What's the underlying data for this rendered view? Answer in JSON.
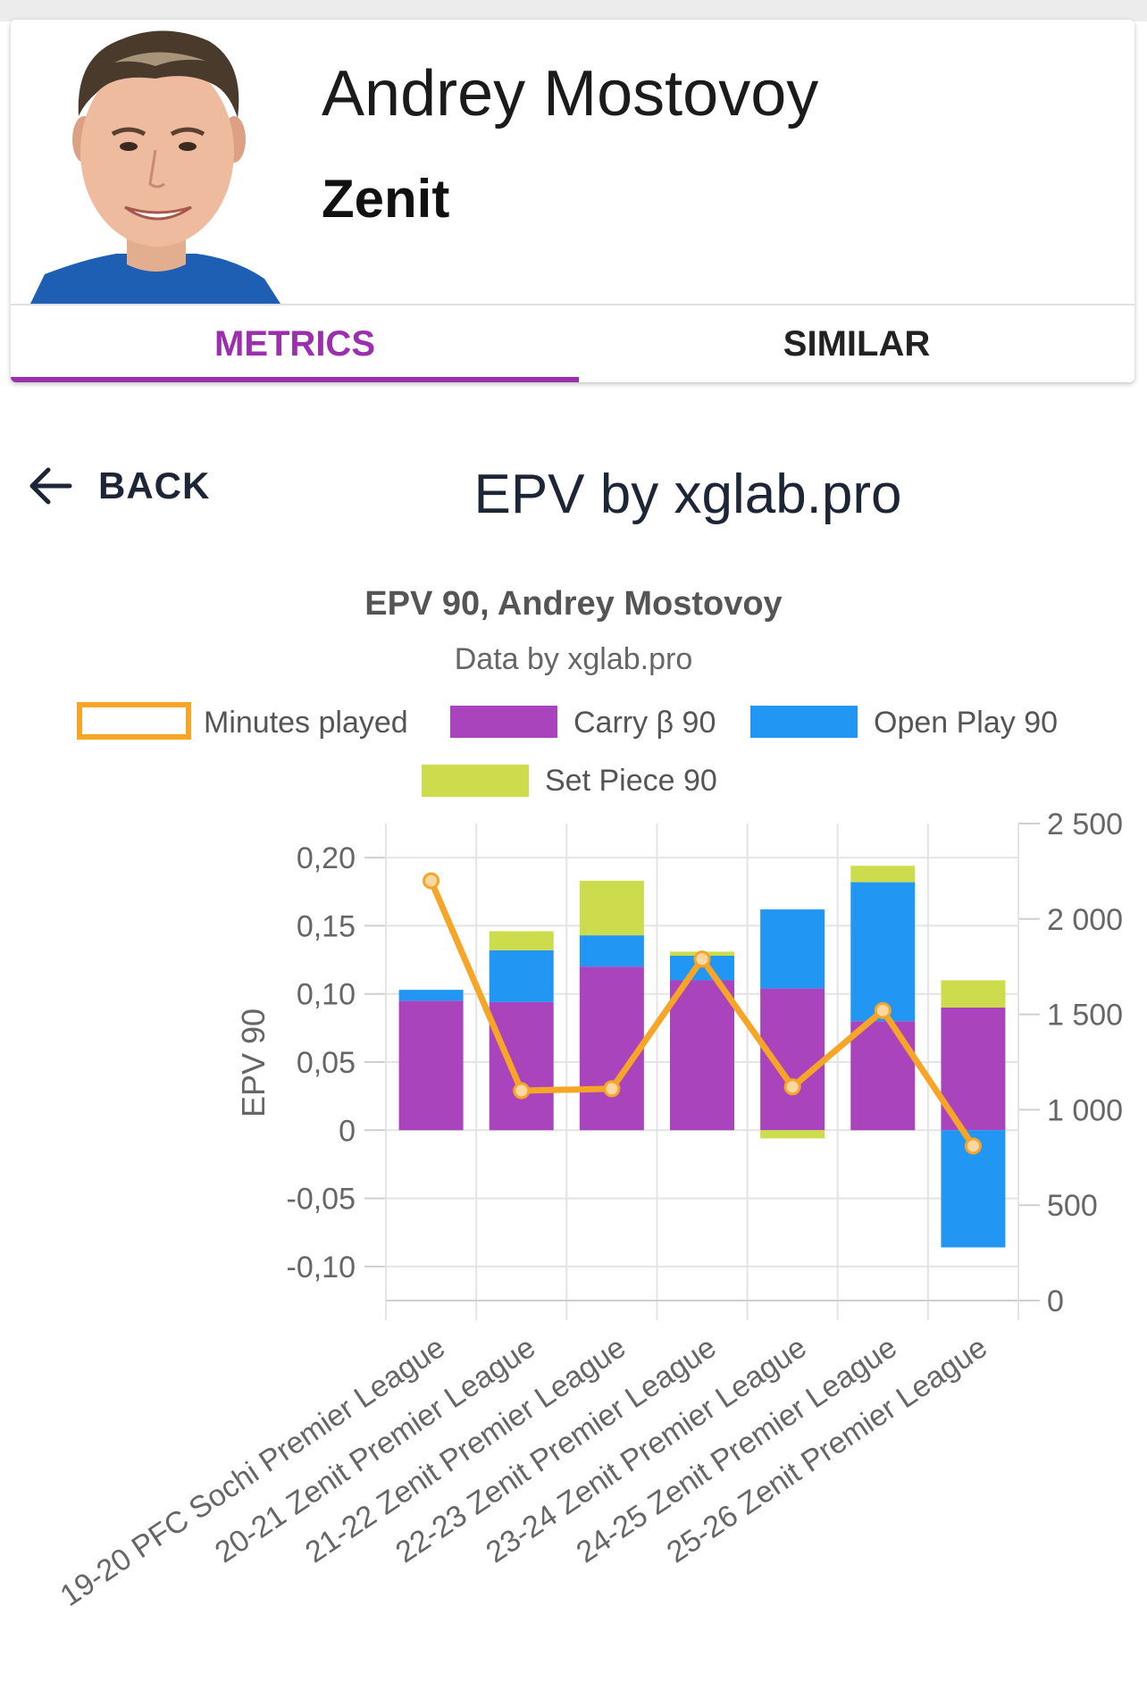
{
  "player": {
    "name": "Andrey Mostovoy",
    "club": "Zenit",
    "photo": "player-photo"
  },
  "tabs": [
    {
      "label": "METRICS",
      "active": true
    },
    {
      "label": "SIMILAR",
      "active": false
    }
  ],
  "nav": {
    "back_label": "BACK",
    "back_icon": "arrow-left-icon"
  },
  "page_title": "EPV by xglab.pro",
  "colors": {
    "accent": "#9b2fae",
    "minutes": "#f7a526",
    "carry": "#a944bd",
    "open_play": "#2196f3",
    "set_piece": "#cddc4c"
  },
  "chart_data": {
    "type": "bar",
    "stacked": true,
    "title": "EPV 90, Andrey Mostovoy",
    "subtitle": "Data by xglab.pro",
    "ylabel": "EPV 90",
    "legend_position": "top",
    "grid": true,
    "categories": [
      "19-20 PFC Sochi Premier League",
      "20-21 Zenit Premier League",
      "21-22 Zenit Premier League",
      "22-23 Zenit Premier League",
      "23-24 Zenit Premier League",
      "24-25 Zenit Premier League",
      "25-26 Zenit Premier League"
    ],
    "series": [
      {
        "name": "Minutes played",
        "type": "line",
        "axis": "right",
        "values": [
          2200,
          1100,
          1110,
          1790,
          1120,
          1520,
          810
        ]
      },
      {
        "name": "Carry β 90",
        "type": "bar",
        "axis": "left",
        "values": [
          0.095,
          0.094,
          0.12,
          0.11,
          0.104,
          0.08,
          0.09
        ]
      },
      {
        "name": "Open Play 90",
        "type": "bar",
        "axis": "left",
        "values": [
          0.008,
          0.038,
          0.023,
          0.018,
          0.058,
          0.102,
          -0.086
        ]
      },
      {
        "name": "Set Piece 90",
        "type": "bar",
        "axis": "left",
        "values": [
          0,
          0.014,
          0.04,
          0.003,
          -0.006,
          0.012,
          0.02
        ]
      }
    ],
    "y_left": {
      "min": -0.125,
      "max": 0.225,
      "ticks": [
        0.2,
        0.15,
        0.1,
        0.05,
        0,
        -0.05,
        -0.1
      ],
      "tick_labels": [
        "0,20",
        "0,15",
        "0,10",
        "0,05",
        "0",
        "-0,05",
        "-0,10"
      ]
    },
    "y_right": {
      "min": 0,
      "max": 2500,
      "ticks": [
        2500,
        2000,
        1500,
        1000,
        500,
        0
      ],
      "tick_labels": [
        "2 500",
        "2 000",
        "1 500",
        "1 000",
        "500",
        "0"
      ]
    }
  }
}
